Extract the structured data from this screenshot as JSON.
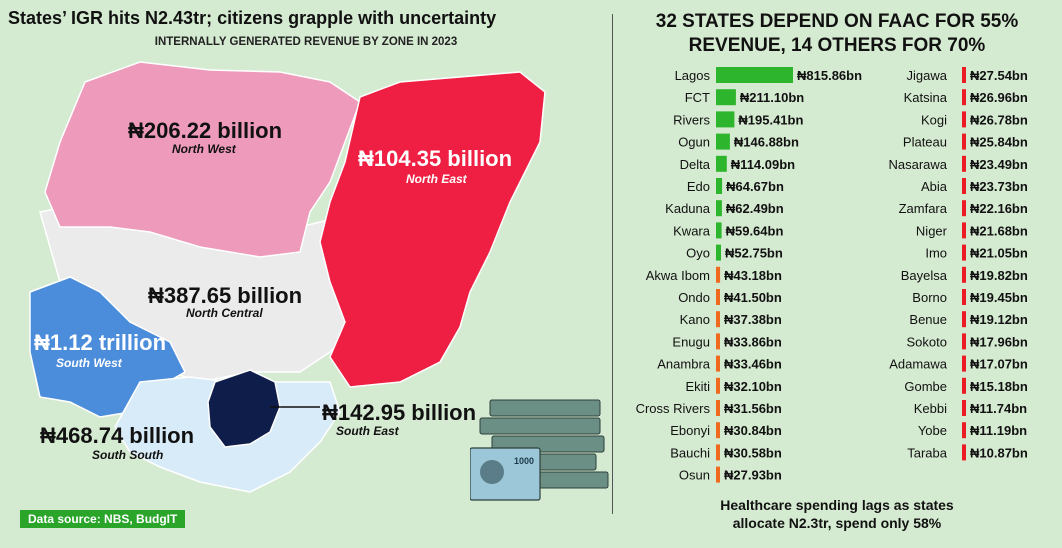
{
  "left_panel": {
    "title": "States’ IGR hits N2.43tr; citizens grapple with uncertainty",
    "subtitle": "INTERNALLY GENERATED REVENUE BY ZONE IN 2023",
    "source": "Data source: NBS, BudgIT"
  },
  "zones": [
    {
      "name": "North West",
      "value": "₦206.22 billion",
      "color": "#ee9bbb"
    },
    {
      "name": "North East",
      "value": "₦104.35 billion",
      "color": "#ef1f43"
    },
    {
      "name": "North Central",
      "value": "₦387.65 billion",
      "color": "#ebebeb"
    },
    {
      "name": "South West",
      "value": "₦1.12 trillion",
      "color": "#4b8ddb"
    },
    {
      "name": "South South",
      "value": "₦468.74 billion",
      "color": "#d7ebf8"
    },
    {
      "name": "South East",
      "value": "₦142.95 billion",
      "color": "#0f1d4a"
    }
  ],
  "right_panel": {
    "title_line1": "32 STATES DEPEND ON FAAC FOR 55%",
    "title_line2": "REVENUE, 14 OTHERS FOR 70%",
    "footer_line1": "Healthcare spending lags as states",
    "footer_line2": "allocate N2.3tr, spend only 58%"
  },
  "chart_data": {
    "type": "bar",
    "orientation": "horizontal",
    "unit": "bn",
    "currency": "₦",
    "colors": {
      "green": "#2db52d",
      "orange": "#ef6a1f",
      "red": "#ec1c24"
    },
    "columns": [
      {
        "bars": [
          {
            "category": "Lagos",
            "value": 815.86,
            "label": "₦815.86bn",
            "color": "green"
          },
          {
            "category": "FCT",
            "value": 211.1,
            "label": "₦211.10bn",
            "color": "green"
          },
          {
            "category": "Rivers",
            "value": 195.41,
            "label": "₦195.41bn",
            "color": "green"
          },
          {
            "category": "Ogun",
            "value": 146.88,
            "label": "₦146.88bn",
            "color": "green"
          },
          {
            "category": "Delta",
            "value": 114.09,
            "label": "₦114.09bn",
            "color": "green"
          },
          {
            "category": "Edo",
            "value": 64.67,
            "label": "₦64.67bn",
            "color": "green"
          },
          {
            "category": "Kaduna",
            "value": 62.49,
            "label": "₦62.49bn",
            "color": "green"
          },
          {
            "category": "Kwara",
            "value": 59.64,
            "label": "₦59.64bn",
            "color": "green"
          },
          {
            "category": "Oyo",
            "value": 52.75,
            "label": "₦52.75bn",
            "color": "green"
          },
          {
            "category": "Akwa Ibom",
            "value": 43.18,
            "label": "₦43.18bn",
            "color": "orange"
          },
          {
            "category": "Ondo",
            "value": 41.5,
            "label": "₦41.50bn",
            "color": "orange"
          },
          {
            "category": "Kano",
            "value": 37.38,
            "label": "₦37.38bn",
            "color": "orange"
          },
          {
            "category": "Enugu",
            "value": 33.86,
            "label": "₦33.86bn",
            "color": "orange"
          },
          {
            "category": "Anambra",
            "value": 33.46,
            "label": "₦33.46bn",
            "color": "orange"
          },
          {
            "category": "Ekiti",
            "value": 32.1,
            "label": "₦32.10bn",
            "color": "orange"
          },
          {
            "category": "Cross Rivers",
            "value": 31.56,
            "label": "₦31.56bn",
            "color": "orange"
          },
          {
            "category": "Ebonyi",
            "value": 30.84,
            "label": "₦30.84bn",
            "color": "orange"
          },
          {
            "category": "Bauchi",
            "value": 30.58,
            "label": "₦30.58bn",
            "color": "orange"
          },
          {
            "category": "Osun",
            "value": 27.93,
            "label": "₦27.93bn",
            "color": "orange"
          }
        ]
      },
      {
        "bars": [
          {
            "category": "Jigawa",
            "value": 27.54,
            "label": "₦27.54bn",
            "color": "red"
          },
          {
            "category": "Katsina",
            "value": 26.96,
            "label": "₦26.96bn",
            "color": "red"
          },
          {
            "category": "Kogi",
            "value": 26.78,
            "label": "₦26.78bn",
            "color": "red"
          },
          {
            "category": "Plateau",
            "value": 25.84,
            "label": "₦25.84bn",
            "color": "red"
          },
          {
            "category": "Nasarawa",
            "value": 23.49,
            "label": "₦23.49bn",
            "color": "red"
          },
          {
            "category": "Abia",
            "value": 23.73,
            "label": "₦23.73bn",
            "color": "red"
          },
          {
            "category": "Zamfara",
            "value": 22.16,
            "label": "₦22.16bn",
            "color": "red"
          },
          {
            "category": "Niger",
            "value": 21.68,
            "label": "₦21.68bn",
            "color": "red"
          },
          {
            "category": "Imo",
            "value": 21.05,
            "label": "₦21.05bn",
            "color": "red"
          },
          {
            "category": "Bayelsa",
            "value": 19.82,
            "label": "₦19.82bn",
            "color": "red"
          },
          {
            "category": "Borno",
            "value": 19.45,
            "label": "₦19.45bn",
            "color": "red"
          },
          {
            "category": "Benue",
            "value": 19.12,
            "label": "₦19.12bn",
            "color": "red"
          },
          {
            "category": "Sokoto",
            "value": 17.96,
            "label": "₦17.96bn",
            "color": "red"
          },
          {
            "category": "Adamawa",
            "value": 17.07,
            "label": "₦17.07bn",
            "color": "red"
          },
          {
            "category": "Gombe",
            "value": 15.18,
            "label": "₦15.18bn",
            "color": "red"
          },
          {
            "category": "Kebbi",
            "value": 11.74,
            "label": "₦11.74bn",
            "color": "red"
          },
          {
            "category": "Yobe",
            "value": 11.19,
            "label": "₦11.19bn",
            "color": "red"
          },
          {
            "category": "Taraba",
            "value": 10.87,
            "label": "₦10.87bn",
            "color": "red"
          }
        ]
      }
    ]
  }
}
